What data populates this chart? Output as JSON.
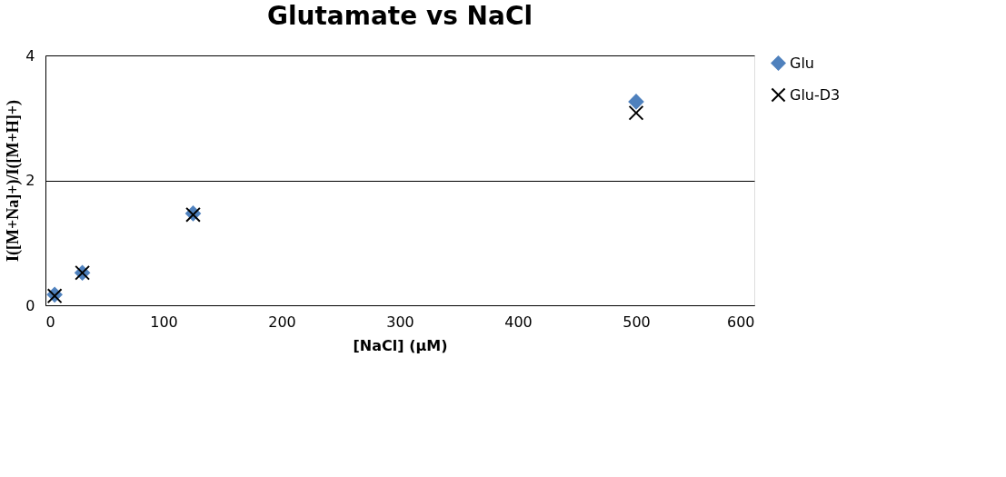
{
  "chart_data": {
    "type": "scatter",
    "title": "Glutamate vs NaCl",
    "xlabel": "[NaCl] (µM)",
    "ylabel": "I([M+Na]+)/I([M+H]+)",
    "x": [
      7.8,
      31.25,
      125,
      500
    ],
    "series": [
      {
        "name": "Glu",
        "color": "#4f81bd",
        "marker": "diamond",
        "values": [
          0.17,
          0.52,
          1.47,
          3.26
        ]
      },
      {
        "name": "Glu-D3",
        "color": "#000000",
        "marker": "cross",
        "values": [
          0.15,
          0.52,
          1.45,
          3.08
        ]
      }
    ],
    "xlim": [
      0,
      600
    ],
    "xticks": [
      0,
      100,
      200,
      300,
      400,
      500,
      600
    ],
    "ylim": [
      0,
      4
    ],
    "yticks": [
      0,
      2,
      4
    ],
    "grid": "y",
    "legend": "right"
  }
}
